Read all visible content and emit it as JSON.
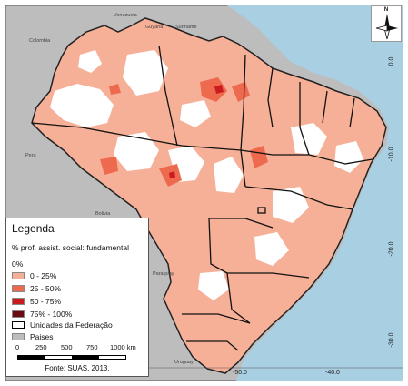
{
  "north_arrow": {
    "letter": "N"
  },
  "legend": {
    "title": "Legenda",
    "subtitle": "% prof. assist. social: fundamental",
    "classes": [
      {
        "label": "0%",
        "color": "#ffffff"
      },
      {
        "label": "0 - 25%",
        "color": "#f6b097"
      },
      {
        "label": "25 - 50%",
        "color": "#ee6a4f"
      },
      {
        "label": "50 - 75%",
        "color": "#cc1b1e"
      },
      {
        "label": "75% - 100%",
        "color": "#6b0a10"
      }
    ],
    "outline_label": "Unidades da Federação",
    "countries_label": "Paises",
    "countries_color": "#bdbdbd",
    "scale_ticks": [
      "0",
      "250",
      "500",
      "750",
      "1000 km"
    ],
    "source": "Fonte: SUAS, 2013."
  },
  "colors": {
    "ocean": "#a9cfe3",
    "neighbors": "#bdbdbd",
    "fill_low": "#f6b097",
    "fill_mid": "#ee6a4f",
    "fill_high": "#cc1b1e",
    "fill_zero": "#ffffff"
  },
  "coordinates": {
    "latitude_labels": [
      "0.0",
      "-10.0",
      "-20.0",
      "-30.0"
    ],
    "longitude_labels": [
      "-50.0",
      "-40.0"
    ]
  },
  "country_labels": {
    "colombia": "Colombia",
    "venezuela": "Venezuela",
    "guyana": "Guyana",
    "suriname": "Suriname",
    "peru": "Peru",
    "bolivia": "Bolivia",
    "paraguay": "Paraguay",
    "uruguay": "Uruguay"
  }
}
